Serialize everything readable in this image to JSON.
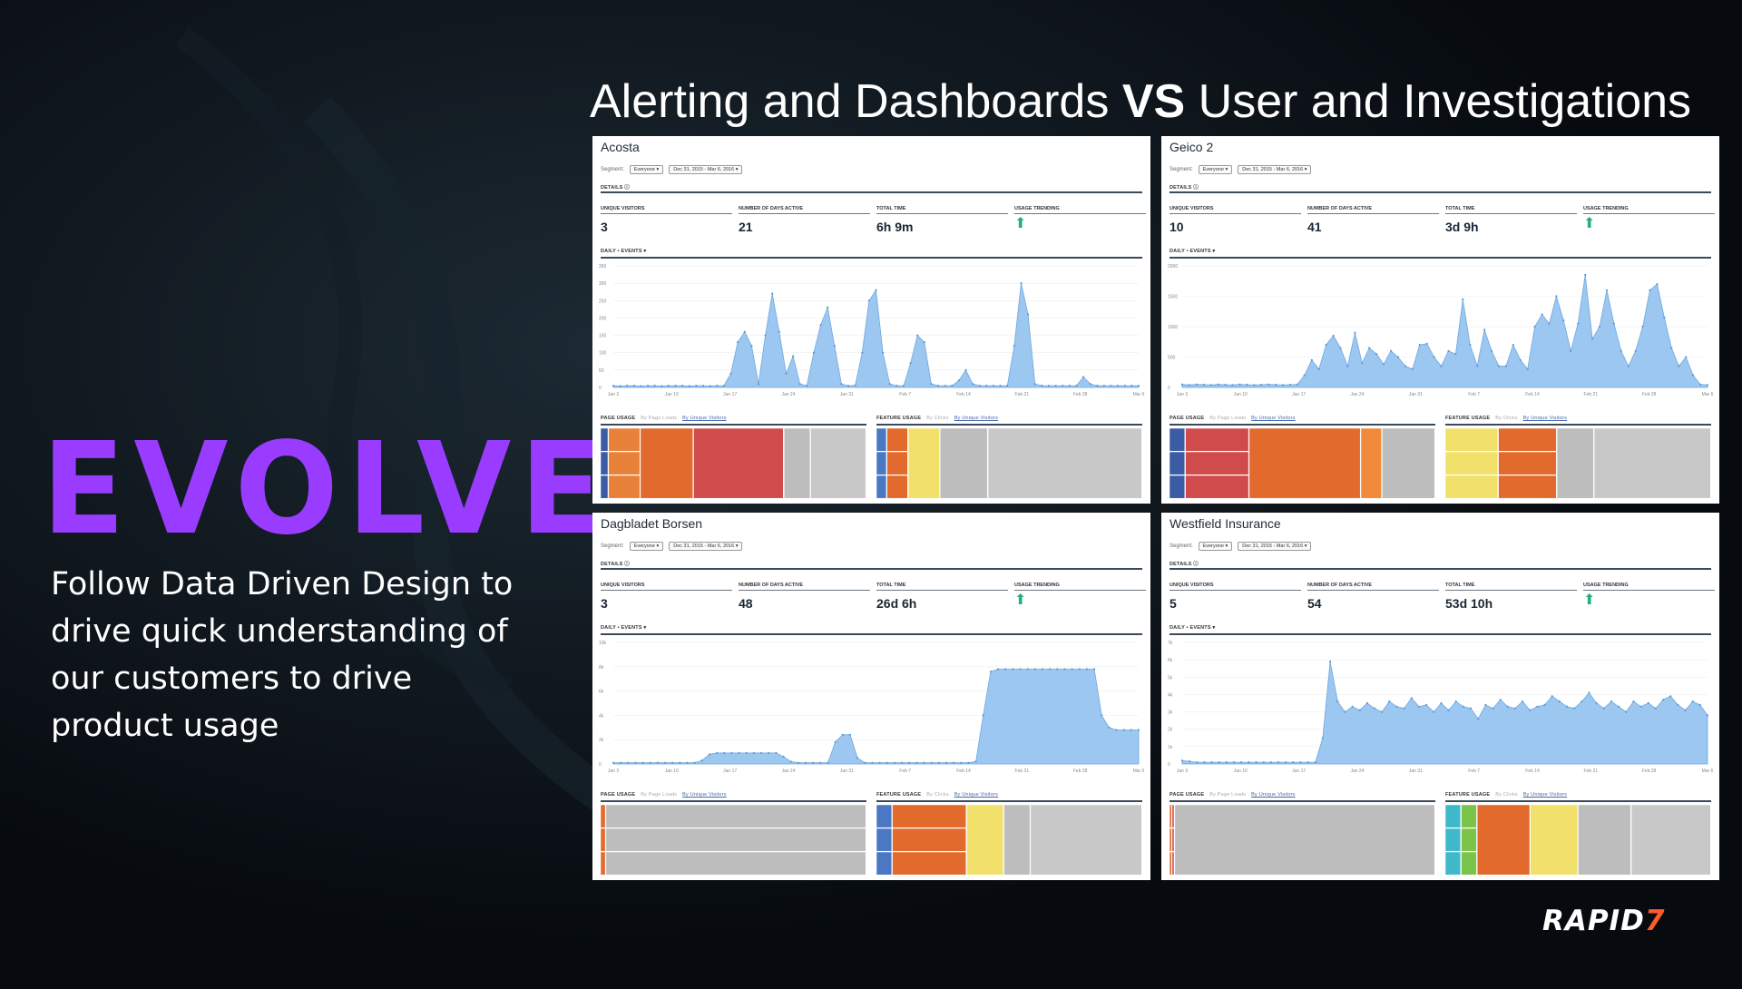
{
  "slide": {
    "title_pre": "Alerting and Dashboards ",
    "title_vs": "VS",
    "title_post": " User and Investigations",
    "heading": "EVOLVE",
    "tagline": [
      "Follow Data Driven Design to",
      "drive quick understanding of",
      "our customers to drive",
      "product usage"
    ],
    "logo_main": "RAPID",
    "logo_mark": "7",
    "colors": {
      "accent": "#9a3cff",
      "logo_mark": "#ff5a2a",
      "chart_fill": "#9cc7f0",
      "trend_up": "#22b07a"
    }
  },
  "labels": {
    "segment": "Segment:",
    "everyone": "Everyone ▾",
    "date_range": "Dec 31, 2015 - Mar 6, 2016 ▾",
    "details": "DETAILS ⓘ",
    "unique_visitors": "UNIQUE VISITORS",
    "days_active": "NUMBER OF DAYS ACTIVE",
    "total_time": "TOTAL TIME",
    "usage_trending": "USAGE TRENDING",
    "daily_events": "DAILY • EVENTS ▾",
    "page_usage": "PAGE USAGE",
    "feature_usage": "FEATURE USAGE",
    "by_page_loads": "By Page Loads",
    "by_clicks": "By Clicks",
    "by_unique_visitors": "By Unique Visitors",
    "trend_icon": "arrow-up-icon"
  },
  "panels": [
    {
      "name": "Acosta",
      "unique_visitors": "3",
      "days_active": "21",
      "total_time": "6h 9m",
      "chart_data": {
        "type": "area",
        "x_ticks": [
          "Jan 3",
          "Jan 10",
          "Jan 17",
          "Jan 24",
          "Jan 31",
          "Feb 7",
          "Feb 14",
          "Feb 21",
          "Feb 28",
          "Mar 6"
        ],
        "y_ticks": [
          "350",
          "300",
          "250",
          "200",
          "150",
          "100",
          "50",
          "0"
        ],
        "ylim": [
          0,
          350
        ],
        "values": [
          5,
          4,
          5,
          5,
          4,
          5,
          5,
          4,
          5,
          5,
          5,
          4,
          5,
          5,
          4,
          5,
          5,
          40,
          130,
          160,
          120,
          10,
          150,
          270,
          160,
          40,
          90,
          10,
          5,
          100,
          180,
          230,
          120,
          10,
          5,
          6,
          100,
          250,
          280,
          100,
          10,
          5,
          5,
          70,
          150,
          130,
          10,
          5,
          5,
          5,
          20,
          50,
          10,
          5,
          5,
          5,
          5,
          5,
          120,
          300,
          210,
          10,
          5,
          5,
          5,
          5,
          5,
          5,
          30,
          10,
          5,
          5,
          5,
          5,
          5,
          5,
          5
        ],
        "grid": true
      },
      "page_usage": [
        [
          "#3b5ba5",
          3
        ],
        [
          "#e8823a",
          12
        ],
        [
          "#e26a2c",
          20
        ],
        [
          "#d04b4b",
          34
        ],
        [
          "#bdbdbd",
          10
        ],
        [
          "#c8c8c8",
          21
        ]
      ],
      "feature_usage": [
        [
          "#4a78c4",
          4
        ],
        [
          "#e26a2c",
          8
        ],
        [
          "#f1e06a",
          12
        ],
        [
          "#bdbdbd",
          18
        ],
        [
          "#c8c8c8",
          58
        ]
      ]
    },
    {
      "name": "Geico 2",
      "unique_visitors": "10",
      "days_active": "41",
      "total_time": "3d 9h",
      "chart_data": {
        "type": "area",
        "x_ticks": [
          "Jan 3",
          "Jan 10",
          "Jan 17",
          "Jan 24",
          "Jan 31",
          "Feb 7",
          "Feb 14",
          "Feb 21",
          "Feb 28",
          "Mar 6"
        ],
        "y_ticks": [
          "2000",
          "1500",
          "1000",
          "500",
          "0"
        ],
        "ylim": [
          0,
          2000
        ],
        "values": [
          50,
          40,
          50,
          45,
          40,
          50,
          45,
          40,
          50,
          45,
          40,
          45,
          50,
          45,
          40,
          45,
          50,
          200,
          450,
          300,
          700,
          850,
          650,
          350,
          900,
          400,
          650,
          550,
          380,
          600,
          500,
          350,
          300,
          700,
          720,
          500,
          350,
          600,
          550,
          1450,
          700,
          350,
          950,
          600,
          350,
          350,
          700,
          450,
          300,
          1000,
          1200,
          1050,
          1500,
          1100,
          600,
          1050,
          1850,
          800,
          1000,
          1600,
          1050,
          600,
          350,
          600,
          1000,
          1600,
          1700,
          1150,
          650,
          350,
          500,
          200,
          50,
          40
        ]
      },
      "page_usage": [
        [
          "#3b5ba5",
          6
        ],
        [
          "#d04b4b",
          24
        ],
        [
          "#e26a2c",
          42
        ],
        [
          "#f08a3a",
          8
        ],
        [
          "#bdbdbd",
          20
        ]
      ],
      "feature_usage": [
        [
          "#f1e06a",
          20
        ],
        [
          "#e26a2c",
          22
        ],
        [
          "#bdbdbd",
          14
        ],
        [
          "#c8c8c8",
          44
        ]
      ]
    },
    {
      "name": "Dagbladet Borsen",
      "unique_visitors": "3",
      "days_active": "48",
      "total_time": "26d 6h",
      "chart_data": {
        "type": "area",
        "x_ticks": [
          "Jan 3",
          "Jan 10",
          "Jan 17",
          "Jan 24",
          "Jan 31",
          "Feb 7",
          "Feb 14",
          "Feb 21",
          "Feb 28",
          "Mar 6"
        ],
        "y_ticks": [
          "10k",
          "8k",
          "6k",
          "4k",
          "2k",
          "0"
        ],
        "ylim": [
          0,
          10000
        ],
        "values": [
          100,
          100,
          100,
          100,
          100,
          100,
          100,
          100,
          100,
          100,
          100,
          100,
          300,
          800,
          900,
          900,
          900,
          900,
          900,
          900,
          900,
          900,
          900,
          600,
          200,
          100,
          100,
          100,
          100,
          100,
          1800,
          2400,
          2400,
          500,
          100,
          100,
          100,
          100,
          100,
          100,
          100,
          100,
          100,
          100,
          100,
          100,
          100,
          100,
          100,
          200,
          4000,
          7600,
          7800,
          7800,
          7800,
          7800,
          7800,
          7800,
          7800,
          7800,
          7800,
          7800,
          7800,
          7800,
          7800,
          7800,
          4000,
          3000,
          2800,
          2800,
          2800,
          2800
        ]
      },
      "page_usage": [
        [
          "#e26a2c",
          2
        ],
        [
          "#bdbdbd",
          98
        ]
      ],
      "feature_usage": [
        [
          "#4a78c4",
          6
        ],
        [
          "#e26a2c",
          28
        ],
        [
          "#f1e06a",
          14
        ],
        [
          "#bdbdbd",
          10
        ],
        [
          "#c8c8c8",
          42
        ]
      ]
    },
    {
      "name": "Westfield Insurance",
      "unique_visitors": "5",
      "days_active": "54",
      "total_time": "53d 10h",
      "chart_data": {
        "type": "area",
        "x_ticks": [
          "Jan 3",
          "Jan 10",
          "Jan 17",
          "Jan 24",
          "Jan 31",
          "Feb 7",
          "Feb 14",
          "Feb 21",
          "Feb 28",
          "Mar 6"
        ],
        "y_ticks": [
          "7k",
          "6k",
          "5k",
          "4k",
          "3k",
          "2k",
          "1k",
          "0"
        ],
        "ylim": [
          0,
          7000
        ],
        "values": [
          200,
          150,
          100,
          100,
          100,
          100,
          100,
          100,
          100,
          100,
          100,
          100,
          100,
          100,
          100,
          100,
          100,
          100,
          100,
          1500,
          5900,
          3600,
          3000,
          3300,
          3100,
          3500,
          3200,
          3000,
          3600,
          3300,
          3200,
          3800,
          3300,
          3400,
          3000,
          3500,
          3100,
          3600,
          3300,
          3200,
          2600,
          3400,
          3200,
          3700,
          3300,
          3200,
          3600,
          3100,
          3300,
          3400,
          3900,
          3600,
          3300,
          3200,
          3600,
          4100,
          3500,
          3200,
          3600,
          3300,
          3000,
          3600,
          3300,
          3500,
          3200,
          3700,
          3900,
          3400,
          3100,
          3600,
          3400,
          2800
        ]
      },
      "page_usage": [
        [
          "#e26a2c",
          1
        ],
        [
          "#d04b4b",
          1
        ],
        [
          "#bdbdbd",
          98
        ]
      ],
      "feature_usage": [
        [
          "#3fb9c9",
          6
        ],
        [
          "#7cc34a",
          6
        ],
        [
          "#e26a2c",
          20
        ],
        [
          "#f1e06a",
          18
        ],
        [
          "#bdbdbd",
          20
        ],
        [
          "#c8c8c8",
          30
        ]
      ]
    }
  ]
}
